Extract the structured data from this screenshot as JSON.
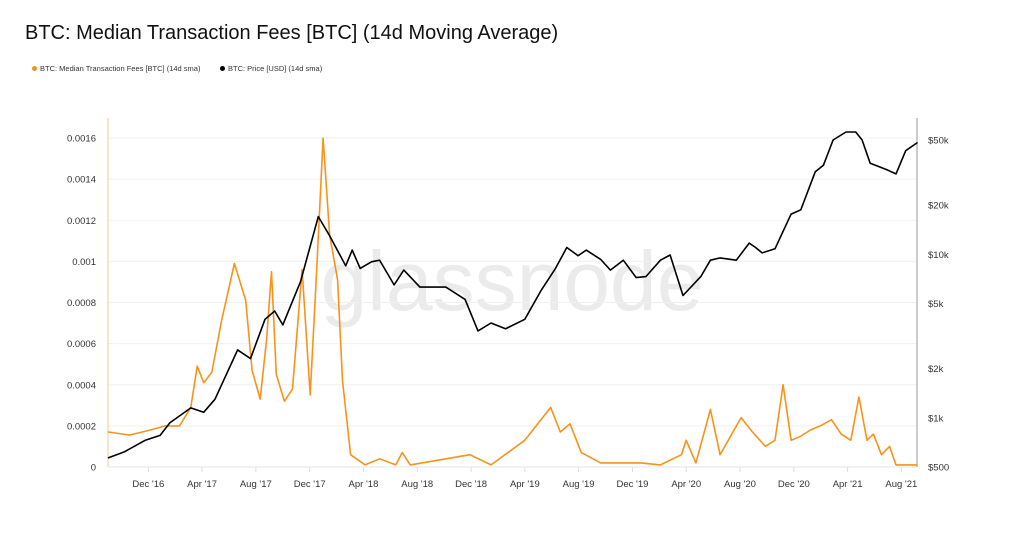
{
  "chart_data": {
    "type": "line",
    "title": "BTC: Median Transaction Fees [BTC] (14d Moving Average)",
    "watermark": "glassnode",
    "xlabel": "",
    "x_range": [
      2016.667,
      2021.68
    ],
    "x_ticks": [
      {
        "x": 2016.917,
        "label": "Dec '16"
      },
      {
        "x": 2017.25,
        "label": "Apr '17"
      },
      {
        "x": 2017.583,
        "label": "Aug '17"
      },
      {
        "x": 2017.917,
        "label": "Dec '17"
      },
      {
        "x": 2018.25,
        "label": "Apr '18"
      },
      {
        "x": 2018.583,
        "label": "Aug '18"
      },
      {
        "x": 2018.917,
        "label": "Dec '18"
      },
      {
        "x": 2019.25,
        "label": "Apr '19"
      },
      {
        "x": 2019.583,
        "label": "Aug '19"
      },
      {
        "x": 2019.917,
        "label": "Dec '19"
      },
      {
        "x": 2020.25,
        "label": "Apr '20"
      },
      {
        "x": 2020.583,
        "label": "Aug '20"
      },
      {
        "x": 2020.917,
        "label": "Dec '20"
      },
      {
        "x": 2021.25,
        "label": "Apr '21"
      },
      {
        "x": 2021.583,
        "label": "Aug '21"
      }
    ],
    "y_left": {
      "range": [
        0,
        0.0016
      ],
      "scale": "linear",
      "ticks": [
        {
          "v": 0,
          "label": "0"
        },
        {
          "v": 0.0002,
          "label": "0.0002"
        },
        {
          "v": 0.0004,
          "label": "0.0004"
        },
        {
          "v": 0.0006,
          "label": "0.0006"
        },
        {
          "v": 0.0008,
          "label": "0.0008"
        },
        {
          "v": 0.001,
          "label": "0.001"
        },
        {
          "v": 0.0012,
          "label": "0.0012"
        },
        {
          "v": 0.0014,
          "label": "0.0014"
        },
        {
          "v": 0.0016,
          "label": "0.0016"
        }
      ]
    },
    "y_right": {
      "range": [
        500,
        50000
      ],
      "scale": "log",
      "ticks": [
        {
          "v": 500,
          "label": "$500"
        },
        {
          "v": 1000,
          "label": "$1k"
        },
        {
          "v": 2000,
          "label": "$2k"
        },
        {
          "v": 5000,
          "label": "$5k"
        },
        {
          "v": 10000,
          "label": "$10k"
        },
        {
          "v": 20000,
          "label": "$20k"
        },
        {
          "v": 50000,
          "label": "$50k"
        }
      ]
    },
    "grid": true,
    "legend_position": "top-left",
    "series": [
      {
        "name": "BTC: Median Transaction Fees [BTC] (14d sma)",
        "color": "#f7931a",
        "axis": "left",
        "points": [
          [
            2016.67,
            0.00017
          ],
          [
            2016.8,
            0.000155
          ],
          [
            2016.93,
            0.00018
          ],
          [
            2017.02,
            0.0002
          ],
          [
            2017.11,
            0.0002
          ],
          [
            2017.18,
            0.00029
          ],
          [
            2017.22,
            0.00049
          ],
          [
            2017.26,
            0.00041
          ],
          [
            2017.31,
            0.00046
          ],
          [
            2017.37,
            0.00071
          ],
          [
            2017.45,
            0.00099
          ],
          [
            2017.52,
            0.00081
          ],
          [
            2017.56,
            0.00047
          ],
          [
            2017.61,
            0.00033
          ],
          [
            2017.65,
            0.00062
          ],
          [
            2017.68,
            0.00095
          ],
          [
            2017.71,
            0.00045
          ],
          [
            2017.76,
            0.00032
          ],
          [
            2017.81,
            0.00038
          ],
          [
            2017.87,
            0.00096
          ],
          [
            2017.92,
            0.00035
          ],
          [
            2017.96,
            0.00096
          ],
          [
            2018.0,
            0.0016
          ],
          [
            2018.04,
            0.00113
          ],
          [
            2018.09,
            0.00091
          ],
          [
            2018.12,
            0.00042
          ],
          [
            2018.17,
            6e-05
          ],
          [
            2018.26,
            1e-05
          ],
          [
            2018.35,
            4e-05
          ],
          [
            2018.45,
            1e-05
          ],
          [
            2018.49,
            7e-05
          ],
          [
            2018.54,
            1e-05
          ],
          [
            2018.91,
            6e-05
          ],
          [
            2019.04,
            1e-05
          ],
          [
            2019.25,
            0.00013
          ],
          [
            2019.41,
            0.00029
          ],
          [
            2019.47,
            0.00017
          ],
          [
            2019.53,
            0.00021
          ],
          [
            2019.6,
            7e-05
          ],
          [
            2019.72,
            2e-05
          ],
          [
            2019.97,
            2e-05
          ],
          [
            2020.09,
            1e-05
          ],
          [
            2020.22,
            6e-05
          ],
          [
            2020.25,
            0.00013
          ],
          [
            2020.31,
            2e-05
          ],
          [
            2020.4,
            0.00028
          ],
          [
            2020.46,
            6e-05
          ],
          [
            2020.59,
            0.00024
          ],
          [
            2020.65,
            0.00018
          ],
          [
            2020.74,
            0.0001
          ],
          [
            2020.8,
            0.00013
          ],
          [
            2020.85,
            0.0004
          ],
          [
            2020.9,
            0.00013
          ],
          [
            2020.96,
            0.00015
          ],
          [
            2021.02,
            0.00018
          ],
          [
            2021.08,
            0.0002
          ],
          [
            2021.15,
            0.00023
          ],
          [
            2021.21,
            0.00016
          ],
          [
            2021.27,
            0.00013
          ],
          [
            2021.32,
            0.00034
          ],
          [
            2021.37,
            0.00013
          ],
          [
            2021.41,
            0.00016
          ],
          [
            2021.46,
            6e-05
          ],
          [
            2021.51,
            0.0001
          ],
          [
            2021.55,
            1e-05
          ],
          [
            2021.68,
            1e-05
          ]
        ]
      },
      {
        "name": "BTC: Price [USD] (14d sma)",
        "color": "#000000",
        "axis": "right",
        "points": [
          [
            2016.67,
            570
          ],
          [
            2016.77,
            620
          ],
          [
            2016.9,
            730
          ],
          [
            2016.99,
            780
          ],
          [
            2017.05,
            930
          ],
          [
            2017.18,
            1150
          ],
          [
            2017.26,
            1080
          ],
          [
            2017.33,
            1300
          ],
          [
            2017.47,
            2600
          ],
          [
            2017.55,
            2300
          ],
          [
            2017.64,
            4000
          ],
          [
            2017.7,
            4500
          ],
          [
            2017.75,
            3700
          ],
          [
            2017.86,
            6800
          ],
          [
            2017.97,
            17000
          ],
          [
            2018.04,
            13000
          ],
          [
            2018.14,
            8500
          ],
          [
            2018.18,
            10600
          ],
          [
            2018.23,
            8200
          ],
          [
            2018.3,
            9000
          ],
          [
            2018.35,
            9200
          ],
          [
            2018.44,
            6500
          ],
          [
            2018.5,
            8000
          ],
          [
            2018.6,
            6300
          ],
          [
            2018.76,
            6300
          ],
          [
            2018.88,
            5300
          ],
          [
            2018.96,
            3400
          ],
          [
            2019.04,
            3800
          ],
          [
            2019.13,
            3500
          ],
          [
            2019.25,
            4000
          ],
          [
            2019.35,
            6000
          ],
          [
            2019.44,
            8200
          ],
          [
            2019.51,
            11000
          ],
          [
            2019.58,
            9800
          ],
          [
            2019.63,
            10600
          ],
          [
            2019.72,
            9300
          ],
          [
            2019.78,
            8000
          ],
          [
            2019.86,
            9200
          ],
          [
            2019.94,
            7200
          ],
          [
            2020.0,
            7300
          ],
          [
            2020.09,
            9200
          ],
          [
            2020.15,
            9900
          ],
          [
            2020.23,
            5600
          ],
          [
            2020.34,
            7300
          ],
          [
            2020.4,
            9200
          ],
          [
            2020.46,
            9500
          ],
          [
            2020.56,
            9200
          ],
          [
            2020.64,
            11700
          ],
          [
            2020.68,
            11000
          ],
          [
            2020.72,
            10200
          ],
          [
            2020.8,
            10800
          ],
          [
            2020.9,
            17600
          ],
          [
            2020.96,
            18700
          ],
          [
            2021.05,
            32000
          ],
          [
            2021.1,
            35000
          ],
          [
            2021.16,
            50000
          ],
          [
            2021.24,
            56000
          ],
          [
            2021.3,
            56000
          ],
          [
            2021.34,
            50000
          ],
          [
            2021.39,
            36000
          ],
          [
            2021.49,
            33000
          ],
          [
            2021.55,
            31000
          ],
          [
            2021.61,
            43000
          ],
          [
            2021.68,
            48000
          ]
        ]
      }
    ]
  }
}
